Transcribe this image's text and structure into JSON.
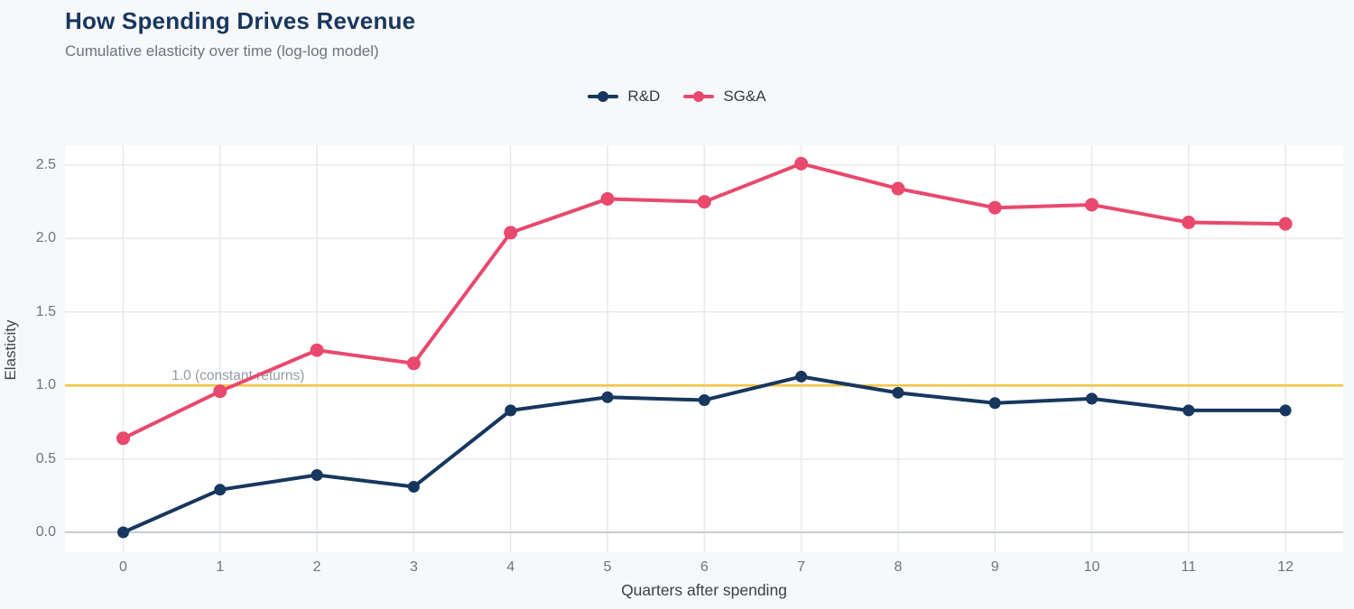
{
  "header": {
    "title": "How Spending Drives Revenue",
    "subtitle": "Cumulative elasticity over time (log-log model)"
  },
  "colors": {
    "background": "#f7f8fa",
    "plot_background": "#ffffff",
    "title": "#17375e",
    "subtitle": "#6c757d",
    "grid": "#e7e9ec",
    "zero_line": "#c9cdd2",
    "tick_text": "#6c757d",
    "axis_label_text": "#3a4148",
    "annotation_text": "#949ca3",
    "rd_navy": "#17375e",
    "sga_pink": "#e8496d",
    "reference_yellow": "#f5c342"
  },
  "chart_data": {
    "type": "line",
    "title": "How Spending Drives Revenue",
    "subtitle": "Cumulative elasticity over time (log-log model)",
    "xlabel": "Quarters after spending",
    "ylabel": "Elasticity",
    "x": [
      0,
      1,
      2,
      3,
      4,
      5,
      6,
      7,
      8,
      9,
      10,
      11,
      12
    ],
    "x_tick_labels": [
      "0",
      "1",
      "2",
      "3",
      "4",
      "5",
      "6",
      "7",
      "8",
      "9",
      "10",
      "11",
      "12"
    ],
    "y_ticks": [
      0.0,
      0.5,
      1.0,
      1.5,
      2.0,
      2.5
    ],
    "y_tick_labels": [
      "0.0",
      "0.5",
      "1.0",
      "1.5",
      "2.0",
      "2.5"
    ],
    "ylim": [
      -0.14,
      2.64
    ],
    "grid": true,
    "legend_position": "top-center",
    "series": [
      {
        "name": "R&D",
        "color": "#17375e",
        "values": [
          0.0,
          0.29,
          0.39,
          0.31,
          0.83,
          0.92,
          0.9,
          1.06,
          0.95,
          0.88,
          0.91,
          0.83,
          0.83
        ]
      },
      {
        "name": "SG&A",
        "color": "#e8496d",
        "values": [
          0.64,
          0.96,
          1.24,
          1.15,
          2.04,
          2.27,
          2.25,
          2.51,
          2.34,
          2.21,
          2.23,
          2.11,
          2.1
        ]
      }
    ],
    "reference_line": {
      "y": 1.0,
      "label": "1.0 (constant returns)",
      "color": "#f5c342"
    }
  }
}
